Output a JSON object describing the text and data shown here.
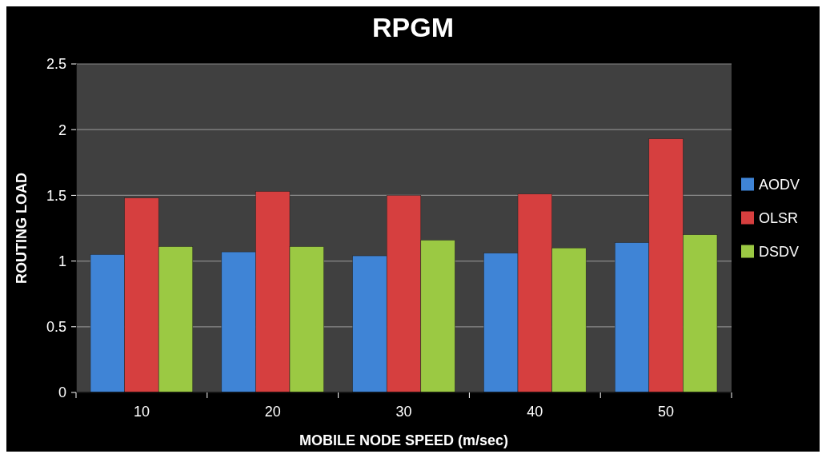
{
  "chart_data": {
    "type": "bar",
    "title": "RPGM",
    "xlabel": "MOBILE NODE SPEED (m/sec)",
    "ylabel": "ROUTING LOAD",
    "categories": [
      "10",
      "20",
      "30",
      "40",
      "50"
    ],
    "series": [
      {
        "name": "AODV",
        "color": "#3f84d6",
        "values": [
          1.05,
          1.07,
          1.04,
          1.06,
          1.14
        ]
      },
      {
        "name": "OLSR",
        "color": "#d63f3f",
        "values": [
          1.48,
          1.53,
          1.5,
          1.51,
          1.93
        ]
      },
      {
        "name": "DSDV",
        "color": "#9bc943",
        "values": [
          1.11,
          1.11,
          1.16,
          1.1,
          1.2
        ]
      }
    ],
    "ylim": [
      0,
      2.5
    ],
    "yticks": [
      0,
      0.5,
      1,
      1.5,
      2,
      2.5
    ],
    "grid": "y",
    "legend": "right"
  }
}
